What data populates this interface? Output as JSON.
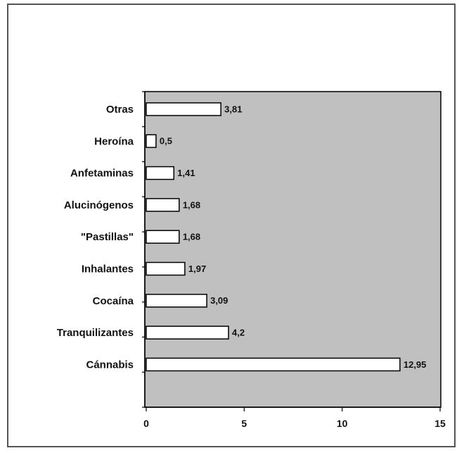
{
  "chart_data": {
    "type": "bar",
    "orientation": "horizontal",
    "title": "",
    "xlabel": "",
    "ylabel": "",
    "categories": [
      "Otras",
      "Heroína",
      "Anfetaminas",
      "Alucinógenos",
      "\"Pastillas\"",
      "Inhalantes",
      "Cocaína",
      "Tranquilizantes",
      "Cánnabis"
    ],
    "values": [
      3.81,
      0.5,
      1.41,
      1.68,
      1.68,
      1.97,
      3.09,
      4.2,
      12.95
    ],
    "value_labels": [
      "3,81",
      "0,5",
      "1,41",
      "1,68",
      "1,68",
      "1,97",
      "3,09",
      "4,2",
      "12,95"
    ],
    "xlim": [
      0,
      15
    ],
    "xticks": [
      0,
      5,
      10,
      15
    ],
    "xtick_labels": [
      "0",
      "5",
      "10",
      "15"
    ],
    "grid": false,
    "plot_background": "#c0c0c0",
    "bar_color": "#ffffff",
    "bar_edge_color": "#000000"
  }
}
